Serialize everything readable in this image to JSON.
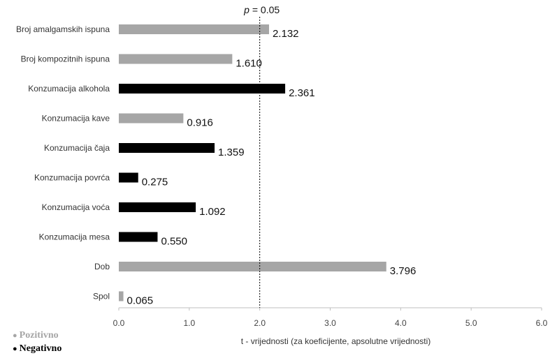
{
  "chart_data": {
    "type": "bar",
    "orientation": "horizontal",
    "categories": [
      "Broj amalgamskih ispuna",
      "Broj kompozitnih ispuna",
      "Konzumacija alkohola",
      "Konzumacija kave",
      "Konzumacija čaja",
      "Konzumacija povrća",
      "Konzumacija voća",
      "Konzumacija mesa",
      "Dob",
      "Spol"
    ],
    "values": [
      2.132,
      1.61,
      2.361,
      0.916,
      1.359,
      0.275,
      1.092,
      0.55,
      3.796,
      0.065
    ],
    "value_labels": [
      "2.132",
      "1.610",
      "2.361",
      "0.916",
      "1.359",
      "0.275",
      "1.092",
      "0.550",
      "3.796",
      "0.065"
    ],
    "sign": [
      "Pozitivno",
      "Pozitivno",
      "Negativno",
      "Pozitivno",
      "Negativno",
      "Negativno",
      "Negativno",
      "Negativno",
      "Pozitivno",
      "Pozitivno"
    ],
    "colors": {
      "Pozitivno": "#a6a6a6",
      "Negativno": "#000000"
    },
    "xlabel": "t - vrijednosti (za koeficijente, apsolutne vrijednosti)",
    "xlim": [
      0,
      6
    ],
    "xticks": [
      "0.0",
      "1.0",
      "2.0",
      "3.0",
      "4.0",
      "5.0",
      "6.0"
    ],
    "reference_line": {
      "x": 2.0,
      "label_italic": "p",
      "label_rest": " = 0.05",
      "style": "dotted"
    },
    "grid": false,
    "legend": {
      "position": "bottom-left",
      "entries": [
        {
          "label": "Pozitivno",
          "color": "#a6a6a6"
        },
        {
          "label": "Negativno",
          "color": "#000000"
        }
      ]
    }
  }
}
